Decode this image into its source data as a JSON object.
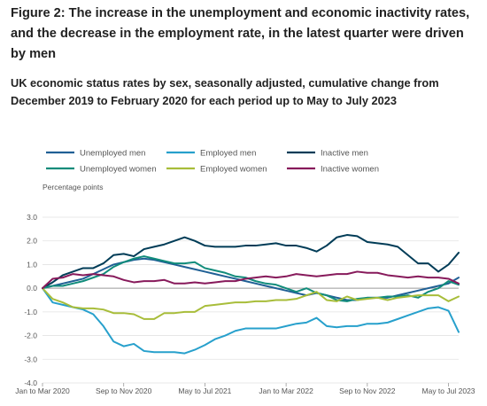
{
  "figure": {
    "title": "Figure 2: The increase in the unemployment and economic inactivity rates, and the decrease in the employment rate, in the latest quarter were driven by men",
    "subtitle": "UK economic status rates by sex, seasonally adjusted, cumulative change from December 2019 to February 2020 for each period up to May to July 2023"
  },
  "chart_data": {
    "type": "line",
    "title": "Figure 2: The increase in the unemployment and economic inactivity rates, and the decrease in the employment rate, in the latest quarter were driven by men",
    "subtitle": "UK economic status rates by sex, seasonally adjusted, cumulative change from December 2019 to February 2020 for each period up to May to July 2023",
    "ylabel": "Percentage points",
    "xlabel": "",
    "ylim": [
      -4,
      3
    ],
    "yticks": [
      3,
      2,
      1,
      0,
      -1,
      -2,
      -3,
      -4
    ],
    "ytick_labels": [
      "3.0",
      "2.0",
      "1.0",
      "0.0",
      "-1.0",
      "-2.0",
      "-3.0",
      "-4.0"
    ],
    "x_count": 42,
    "x_tick_labels": [
      {
        "index": 0,
        "label": "Jan to Mar 2020"
      },
      {
        "index": 8,
        "label": "Sep to Nov 2020"
      },
      {
        "index": 16,
        "label": "May to Jul 2021"
      },
      {
        "index": 24,
        "label": "Jan to Mar 2022"
      },
      {
        "index": 32,
        "label": "Sep to Nov 2022"
      },
      {
        "index": 40,
        "label": "May to Jul 2023"
      }
    ],
    "grid": true,
    "legend_position": "top",
    "series": [
      {
        "name": "Unemployed men",
        "color": "#206095",
        "values": [
          0,
          0.1,
          0.2,
          0.3,
          0.4,
          0.6,
          0.8,
          1.0,
          1.1,
          1.2,
          1.25,
          1.2,
          1.1,
          1.0,
          0.9,
          0.8,
          0.7,
          0.6,
          0.5,
          0.4,
          0.3,
          0.2,
          0.1,
          0.0,
          -0.1,
          -0.2,
          -0.3,
          -0.2,
          -0.3,
          -0.4,
          -0.5,
          -0.5,
          -0.4,
          -0.4,
          -0.4,
          -0.3,
          -0.2,
          -0.1,
          0.0,
          0.1,
          0.2,
          0.45
        ]
      },
      {
        "name": "Employed men",
        "color": "#27a0cc",
        "values": [
          0,
          -0.6,
          -0.7,
          -0.8,
          -0.9,
          -1.1,
          -1.6,
          -2.25,
          -2.45,
          -2.35,
          -2.65,
          -2.7,
          -2.7,
          -2.7,
          -2.75,
          -2.6,
          -2.4,
          -2.15,
          -2.0,
          -1.8,
          -1.7,
          -1.7,
          -1.7,
          -1.7,
          -1.6,
          -1.5,
          -1.45,
          -1.25,
          -1.6,
          -1.65,
          -1.6,
          -1.6,
          -1.5,
          -1.5,
          -1.45,
          -1.3,
          -1.15,
          -1.0,
          -0.85,
          -0.8,
          -0.95,
          -1.85
        ]
      },
      {
        "name": "Inactive men",
        "color": "#003c57",
        "values": [
          0,
          0.25,
          0.55,
          0.7,
          0.85,
          0.85,
          1.05,
          1.4,
          1.45,
          1.35,
          1.65,
          1.75,
          1.85,
          2.0,
          2.15,
          2.0,
          1.8,
          1.75,
          1.75,
          1.75,
          1.8,
          1.8,
          1.85,
          1.9,
          1.8,
          1.8,
          1.7,
          1.55,
          1.8,
          2.15,
          2.25,
          2.2,
          1.95,
          1.9,
          1.85,
          1.75,
          1.4,
          1.05,
          1.05,
          0.7,
          1.0,
          1.5
        ]
      },
      {
        "name": "Unemployed women",
        "color": "#118c7b",
        "values": [
          0,
          0.1,
          0.1,
          0.2,
          0.3,
          0.45,
          0.6,
          0.9,
          1.1,
          1.25,
          1.35,
          1.25,
          1.15,
          1.05,
          1.05,
          1.1,
          0.85,
          0.75,
          0.65,
          0.5,
          0.45,
          0.3,
          0.2,
          0.15,
          0.0,
          -0.15,
          0.0,
          -0.2,
          -0.3,
          -0.5,
          -0.55,
          -0.45,
          -0.4,
          -0.4,
          -0.35,
          -0.35,
          -0.3,
          -0.4,
          -0.15,
          0.0,
          0.3,
          0.15
        ]
      },
      {
        "name": "Employed women",
        "color": "#a8bd3a",
        "values": [
          0,
          -0.45,
          -0.6,
          -0.8,
          -0.85,
          -0.85,
          -0.9,
          -1.05,
          -1.05,
          -1.1,
          -1.3,
          -1.3,
          -1.05,
          -1.05,
          -1.0,
          -1.0,
          -0.75,
          -0.7,
          -0.65,
          -0.6,
          -0.6,
          -0.55,
          -0.55,
          -0.5,
          -0.5,
          -0.45,
          -0.3,
          -0.15,
          -0.5,
          -0.55,
          -0.35,
          -0.5,
          -0.45,
          -0.4,
          -0.5,
          -0.4,
          -0.35,
          -0.3,
          -0.3,
          -0.3,
          -0.55,
          -0.35
        ]
      },
      {
        "name": "Inactive women",
        "color": "#871a5b",
        "values": [
          0,
          0.4,
          0.45,
          0.6,
          0.55,
          0.6,
          0.55,
          0.5,
          0.35,
          0.25,
          0.3,
          0.3,
          0.35,
          0.2,
          0.2,
          0.25,
          0.2,
          0.25,
          0.3,
          0.3,
          0.4,
          0.45,
          0.5,
          0.45,
          0.5,
          0.6,
          0.55,
          0.5,
          0.55,
          0.6,
          0.6,
          0.7,
          0.65,
          0.65,
          0.55,
          0.5,
          0.45,
          0.5,
          0.45,
          0.45,
          0.4,
          0.2
        ]
      }
    ]
  }
}
